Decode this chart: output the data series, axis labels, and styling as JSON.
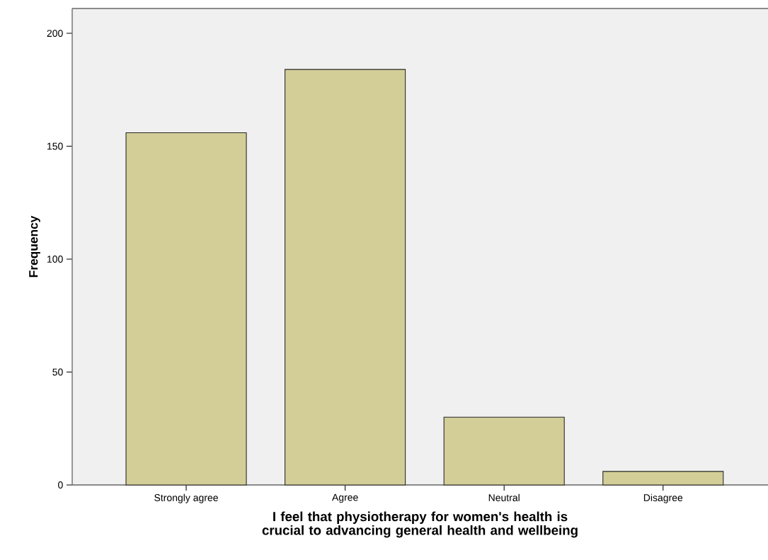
{
  "chart_data": {
    "type": "bar",
    "xlabel": "I feel that physiotherapy for women's health is crucial to advancing general health and wellbeing",
    "ylabel": "Frequency",
    "categories": [
      "Strongly agree",
      "Agree",
      "Neutral",
      "Disagree"
    ],
    "values": [
      156,
      184,
      30,
      6
    ],
    "color": "#d3ce97",
    "ylim": [
      0,
      211
    ],
    "yticks": [
      0,
      50,
      100,
      150,
      200
    ],
    "grid": false
  }
}
